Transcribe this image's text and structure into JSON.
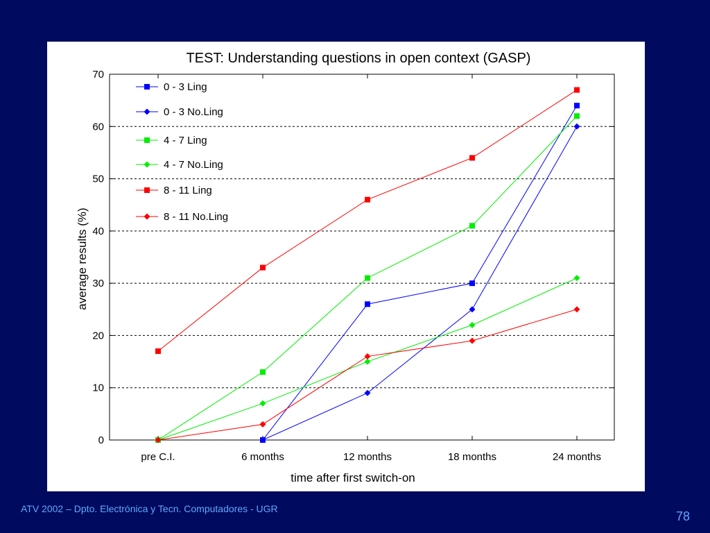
{
  "footer": {
    "text": "ATV 2002 – Dpto. Electrónica y Tecn. Computadores - UGR",
    "page_number": "78"
  },
  "colors": {
    "background": "#000a5e",
    "footer_text": "#5fa8ff"
  },
  "chart_data": {
    "type": "line",
    "title": "TEST: Understanding questions in open context (GASP)",
    "xlabel": "time after first switch-on",
    "ylabel": "average results (%)",
    "categories": [
      "pre C.I.",
      "6 months",
      "12 months",
      "18 months",
      "24 months"
    ],
    "ylim": [
      0,
      70
    ],
    "yticks": [
      0,
      10,
      20,
      30,
      40,
      50,
      60,
      70
    ],
    "grid": "horizontal-dashed",
    "legend_position": "top-left",
    "series": [
      {
        "name": "0 - 3 Ling",
        "color": "#0000ff",
        "marker": "square",
        "values": [
          null,
          0,
          26,
          30,
          64
        ]
      },
      {
        "name": "0 - 3 No.Ling",
        "color": "#0000ff",
        "marker": "diamond",
        "values": [
          null,
          0,
          9,
          25,
          60
        ]
      },
      {
        "name": "4 - 7 Ling",
        "color": "#00ee00",
        "marker": "square",
        "values": [
          0,
          13,
          31,
          41,
          62
        ]
      },
      {
        "name": "4 - 7 No.Ling",
        "color": "#00ee00",
        "marker": "diamond",
        "values": [
          0,
          7,
          15,
          22,
          31
        ]
      },
      {
        "name": "8 - 11 Ling",
        "color": "#ff0000",
        "marker": "square",
        "values": [
          17,
          33,
          46,
          54,
          67
        ]
      },
      {
        "name": "8 - 11 No.Ling",
        "color": "#ff0000",
        "marker": "diamond",
        "values": [
          0,
          3,
          16,
          19,
          25
        ]
      }
    ]
  }
}
